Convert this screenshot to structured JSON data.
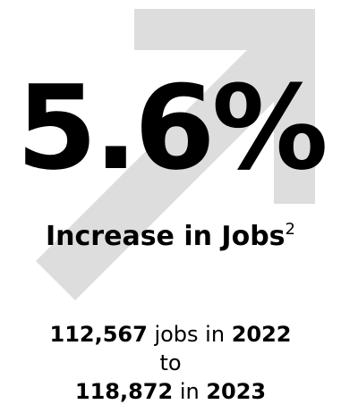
{
  "stat": {
    "value": "5.6%"
  },
  "headline": {
    "text": "Increase in Jobs",
    "footnote": "2"
  },
  "detail": {
    "jobs_start": "112,567",
    "jobs_word": " jobs in ",
    "year_start": "2022",
    "to_word": "to",
    "jobs_end": "118,872",
    "in_word": " in ",
    "year_end": "2023"
  },
  "colors": {
    "arrow": "#dddddd",
    "text": "#000000"
  }
}
